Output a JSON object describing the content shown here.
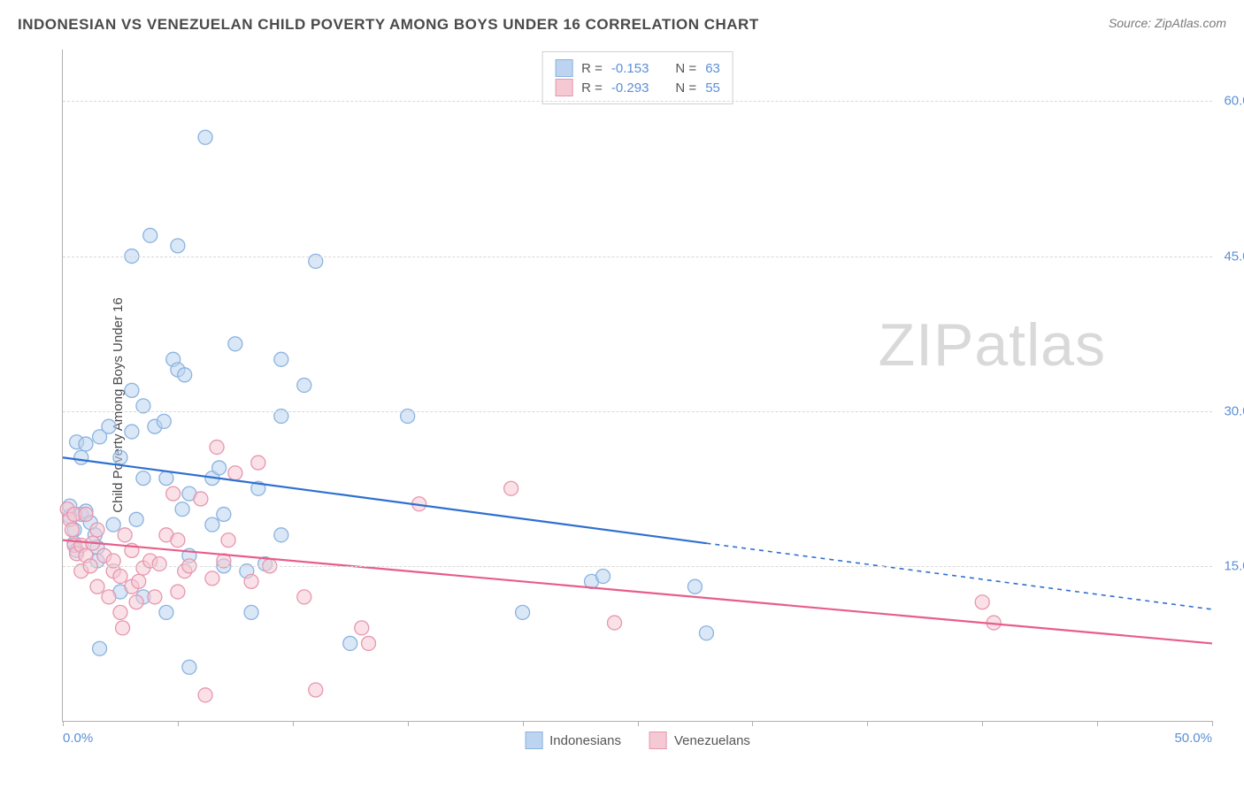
{
  "title": "INDONESIAN VS VENEZUELAN CHILD POVERTY AMONG BOYS UNDER 16 CORRELATION CHART",
  "source_label": "Source: ZipAtlas.com",
  "ylabel": "Child Poverty Among Boys Under 16",
  "watermark_bold": "ZIP",
  "watermark_light": "atlas",
  "chart": {
    "type": "scatter",
    "background_color": "#ffffff",
    "grid_color": "#d8d8d8",
    "axis_color": "#b0b0b0",
    "tick_label_color": "#5b8fd6",
    "x_domain": [
      0,
      50
    ],
    "y_domain": [
      0,
      65
    ],
    "x_ticks": [
      0,
      5,
      10,
      15,
      20,
      25,
      30,
      35,
      40,
      45,
      50
    ],
    "x_tick_labels": {
      "0": "0.0%",
      "50": "50.0%"
    },
    "y_ticks": [
      15,
      30,
      45,
      60
    ],
    "y_tick_labels": {
      "15": "15.0%",
      "30": "30.0%",
      "45": "45.0%",
      "60": "60.0%"
    },
    "marker_radius": 8,
    "marker_opacity": 0.55,
    "line_width": 2.2,
    "series": [
      {
        "name": "Indonesians",
        "color_fill": "#bcd4ef",
        "color_stroke": "#8ab3e0",
        "line_color": "#2f6fd0",
        "corr_R": "-0.153",
        "corr_N": "63",
        "trend": {
          "x1": 0,
          "y1": 25.5,
          "x2": 28,
          "y2": 17.2,
          "x3": 50,
          "y3": 10.8
        },
        "points": [
          [
            0.3,
            19.8
          ],
          [
            0.3,
            20.8
          ],
          [
            0.5,
            18.5
          ],
          [
            0.5,
            17.2
          ],
          [
            0.6,
            16.5
          ],
          [
            0.6,
            27.0
          ],
          [
            0.8,
            20.0
          ],
          [
            0.8,
            25.5
          ],
          [
            1.0,
            20.3
          ],
          [
            1.0,
            26.8
          ],
          [
            1.2,
            19.2
          ],
          [
            1.4,
            18.0
          ],
          [
            1.5,
            16.8
          ],
          [
            1.5,
            15.5
          ],
          [
            1.6,
            27.5
          ],
          [
            1.6,
            7.0
          ],
          [
            2.0,
            28.5
          ],
          [
            2.2,
            19.0
          ],
          [
            2.5,
            25.5
          ],
          [
            2.5,
            12.5
          ],
          [
            3.0,
            45.0
          ],
          [
            3.0,
            28.0
          ],
          [
            3.0,
            32.0
          ],
          [
            3.2,
            19.5
          ],
          [
            3.5,
            23.5
          ],
          [
            3.5,
            30.5
          ],
          [
            3.5,
            12.0
          ],
          [
            3.8,
            47.0
          ],
          [
            4.0,
            28.5
          ],
          [
            4.4,
            29.0
          ],
          [
            4.5,
            23.5
          ],
          [
            4.5,
            10.5
          ],
          [
            4.8,
            35.0
          ],
          [
            5.0,
            46.0
          ],
          [
            5.0,
            34.0
          ],
          [
            5.2,
            20.5
          ],
          [
            5.3,
            33.5
          ],
          [
            5.5,
            22.0
          ],
          [
            5.5,
            16.0
          ],
          [
            5.5,
            5.2
          ],
          [
            6.2,
            56.5
          ],
          [
            6.5,
            19.0
          ],
          [
            6.5,
            23.5
          ],
          [
            6.8,
            24.5
          ],
          [
            7.0,
            15.0
          ],
          [
            7.0,
            20.0
          ],
          [
            7.5,
            36.5
          ],
          [
            8.0,
            14.5
          ],
          [
            8.2,
            10.5
          ],
          [
            8.5,
            22.5
          ],
          [
            8.8,
            15.2
          ],
          [
            9.5,
            35.0
          ],
          [
            9.5,
            18.0
          ],
          [
            9.5,
            29.5
          ],
          [
            10.5,
            32.5
          ],
          [
            11.0,
            44.5
          ],
          [
            12.5,
            7.5
          ],
          [
            15.0,
            29.5
          ],
          [
            20.0,
            10.5
          ],
          [
            23.0,
            13.5
          ],
          [
            23.5,
            14.0
          ],
          [
            27.5,
            13.0
          ],
          [
            28.0,
            8.5
          ]
        ]
      },
      {
        "name": "Venezuelans",
        "color_fill": "#f4c9d4",
        "color_stroke": "#e896ae",
        "line_color": "#e85d8a",
        "corr_R": "-0.293",
        "corr_N": "55",
        "trend": {
          "x1": 0,
          "y1": 17.5,
          "x2": 50,
          "y2": 7.5
        },
        "points": [
          [
            0.2,
            20.5
          ],
          [
            0.3,
            19.5
          ],
          [
            0.4,
            18.5
          ],
          [
            0.5,
            17.0
          ],
          [
            0.5,
            20.0
          ],
          [
            0.6,
            16.2
          ],
          [
            0.8,
            17.0
          ],
          [
            0.8,
            14.5
          ],
          [
            1.0,
            20.0
          ],
          [
            1.0,
            16.0
          ],
          [
            1.2,
            15.0
          ],
          [
            1.3,
            17.2
          ],
          [
            1.5,
            13.0
          ],
          [
            1.5,
            18.5
          ],
          [
            1.8,
            16.0
          ],
          [
            2.0,
            12.0
          ],
          [
            2.2,
            14.5
          ],
          [
            2.2,
            15.5
          ],
          [
            2.5,
            10.5
          ],
          [
            2.5,
            14.0
          ],
          [
            2.6,
            9.0
          ],
          [
            2.7,
            18.0
          ],
          [
            3.0,
            13.0
          ],
          [
            3.0,
            16.5
          ],
          [
            3.2,
            11.5
          ],
          [
            3.3,
            13.5
          ],
          [
            3.5,
            14.8
          ],
          [
            3.8,
            15.5
          ],
          [
            4.0,
            12.0
          ],
          [
            4.2,
            15.2
          ],
          [
            4.5,
            18.0
          ],
          [
            4.8,
            22.0
          ],
          [
            5.0,
            12.5
          ],
          [
            5.0,
            17.5
          ],
          [
            5.3,
            14.5
          ],
          [
            5.5,
            15.0
          ],
          [
            6.0,
            21.5
          ],
          [
            6.2,
            2.5
          ],
          [
            6.5,
            13.8
          ],
          [
            6.7,
            26.5
          ],
          [
            7.0,
            15.5
          ],
          [
            7.2,
            17.5
          ],
          [
            7.5,
            24.0
          ],
          [
            8.2,
            13.5
          ],
          [
            8.5,
            25.0
          ],
          [
            9.0,
            15.0
          ],
          [
            10.5,
            12.0
          ],
          [
            11.0,
            3.0
          ],
          [
            13.0,
            9.0
          ],
          [
            13.3,
            7.5
          ],
          [
            15.5,
            21.0
          ],
          [
            19.5,
            22.5
          ],
          [
            24.0,
            9.5
          ],
          [
            40.0,
            11.5
          ],
          [
            40.5,
            9.5
          ]
        ]
      }
    ]
  },
  "legend_labels": {
    "R": "R =",
    "N": "N ="
  }
}
